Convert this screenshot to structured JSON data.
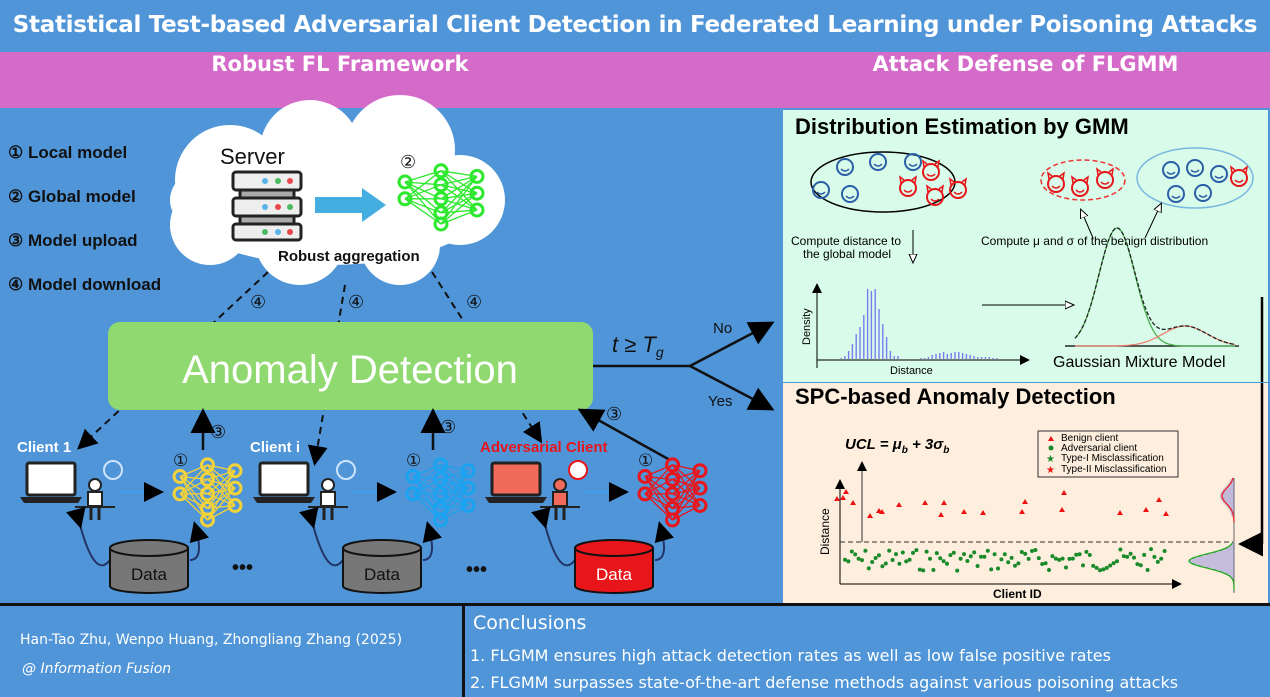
{
  "title": "Statistical Test-based Adversarial Client Detection in Federated Learning under Poisoning Attacks",
  "sections": {
    "left": "Robust FL Framework",
    "right": "Attack Defense of FLGMM"
  },
  "legend": [
    {
      "num": "①",
      "label": "Local model"
    },
    {
      "num": "②",
      "label": "Global model"
    },
    {
      "num": "③",
      "label": "Model upload"
    },
    {
      "num": "④",
      "label": "Model download"
    }
  ],
  "framework": {
    "server_label": "Server",
    "global_marker": "②",
    "aggregation_label": "Robust aggregation",
    "download_marker": "④",
    "upload_marker": "③",
    "local_marker": "①",
    "anomaly_label": "Anomaly Detection",
    "threshold": "t ≥ T",
    "threshold_sub": "g",
    "no_label": "No",
    "yes_label": "Yes",
    "clients": [
      {
        "label": "Client 1",
        "data_label": "Data",
        "adversarial": false
      },
      {
        "label": "Client i",
        "data_label": "Data",
        "adversarial": false
      },
      {
        "label": "Adversarial Client",
        "data_label": "Data",
        "adversarial": true
      }
    ],
    "ellipsis": "•••",
    "colors": {
      "benign_net": "#f3d23a",
      "client_i_net": "#1aa3f0",
      "adversarial": "#e8161b",
      "global_net": "#2de82d",
      "anomaly_box": "#90d870"
    }
  },
  "gmm_panel": {
    "title": "Distribution Estimation by GMM",
    "compute_distance": [
      "Compute distance to",
      "the global model"
    ],
    "compute_params": "Compute μ and σ of the benign distribution",
    "hist_ylabel": "Density",
    "hist_xlabel": "Distance",
    "gmm_label": "Gaussian Mixture Model"
  },
  "spc_panel": {
    "title": "SPC-based Anomaly Detection",
    "ucl_formula": "UCL = μ",
    "ucl_sub_b": "b",
    "ucl_rest": " + 3σ",
    "ylabel": "Distance",
    "xlabel": "Client ID",
    "legend": [
      "Benign client",
      "Adversarial client",
      "Type-I Misclassification",
      "Type-II Misclassification"
    ]
  },
  "footer": {
    "authors": "Han-Tao Zhu, Wenpo Huang, Zhongliang Zhang (2025)",
    "venue": "@ Information Fusion",
    "conclusions_title": "Conclusions",
    "conclusions": [
      "1. FLGMM ensures high attack detection rates as well as low false positive rates",
      "2. FLGMM surpasses state-of-the-art defense methods against various poisoning attacks"
    ]
  }
}
